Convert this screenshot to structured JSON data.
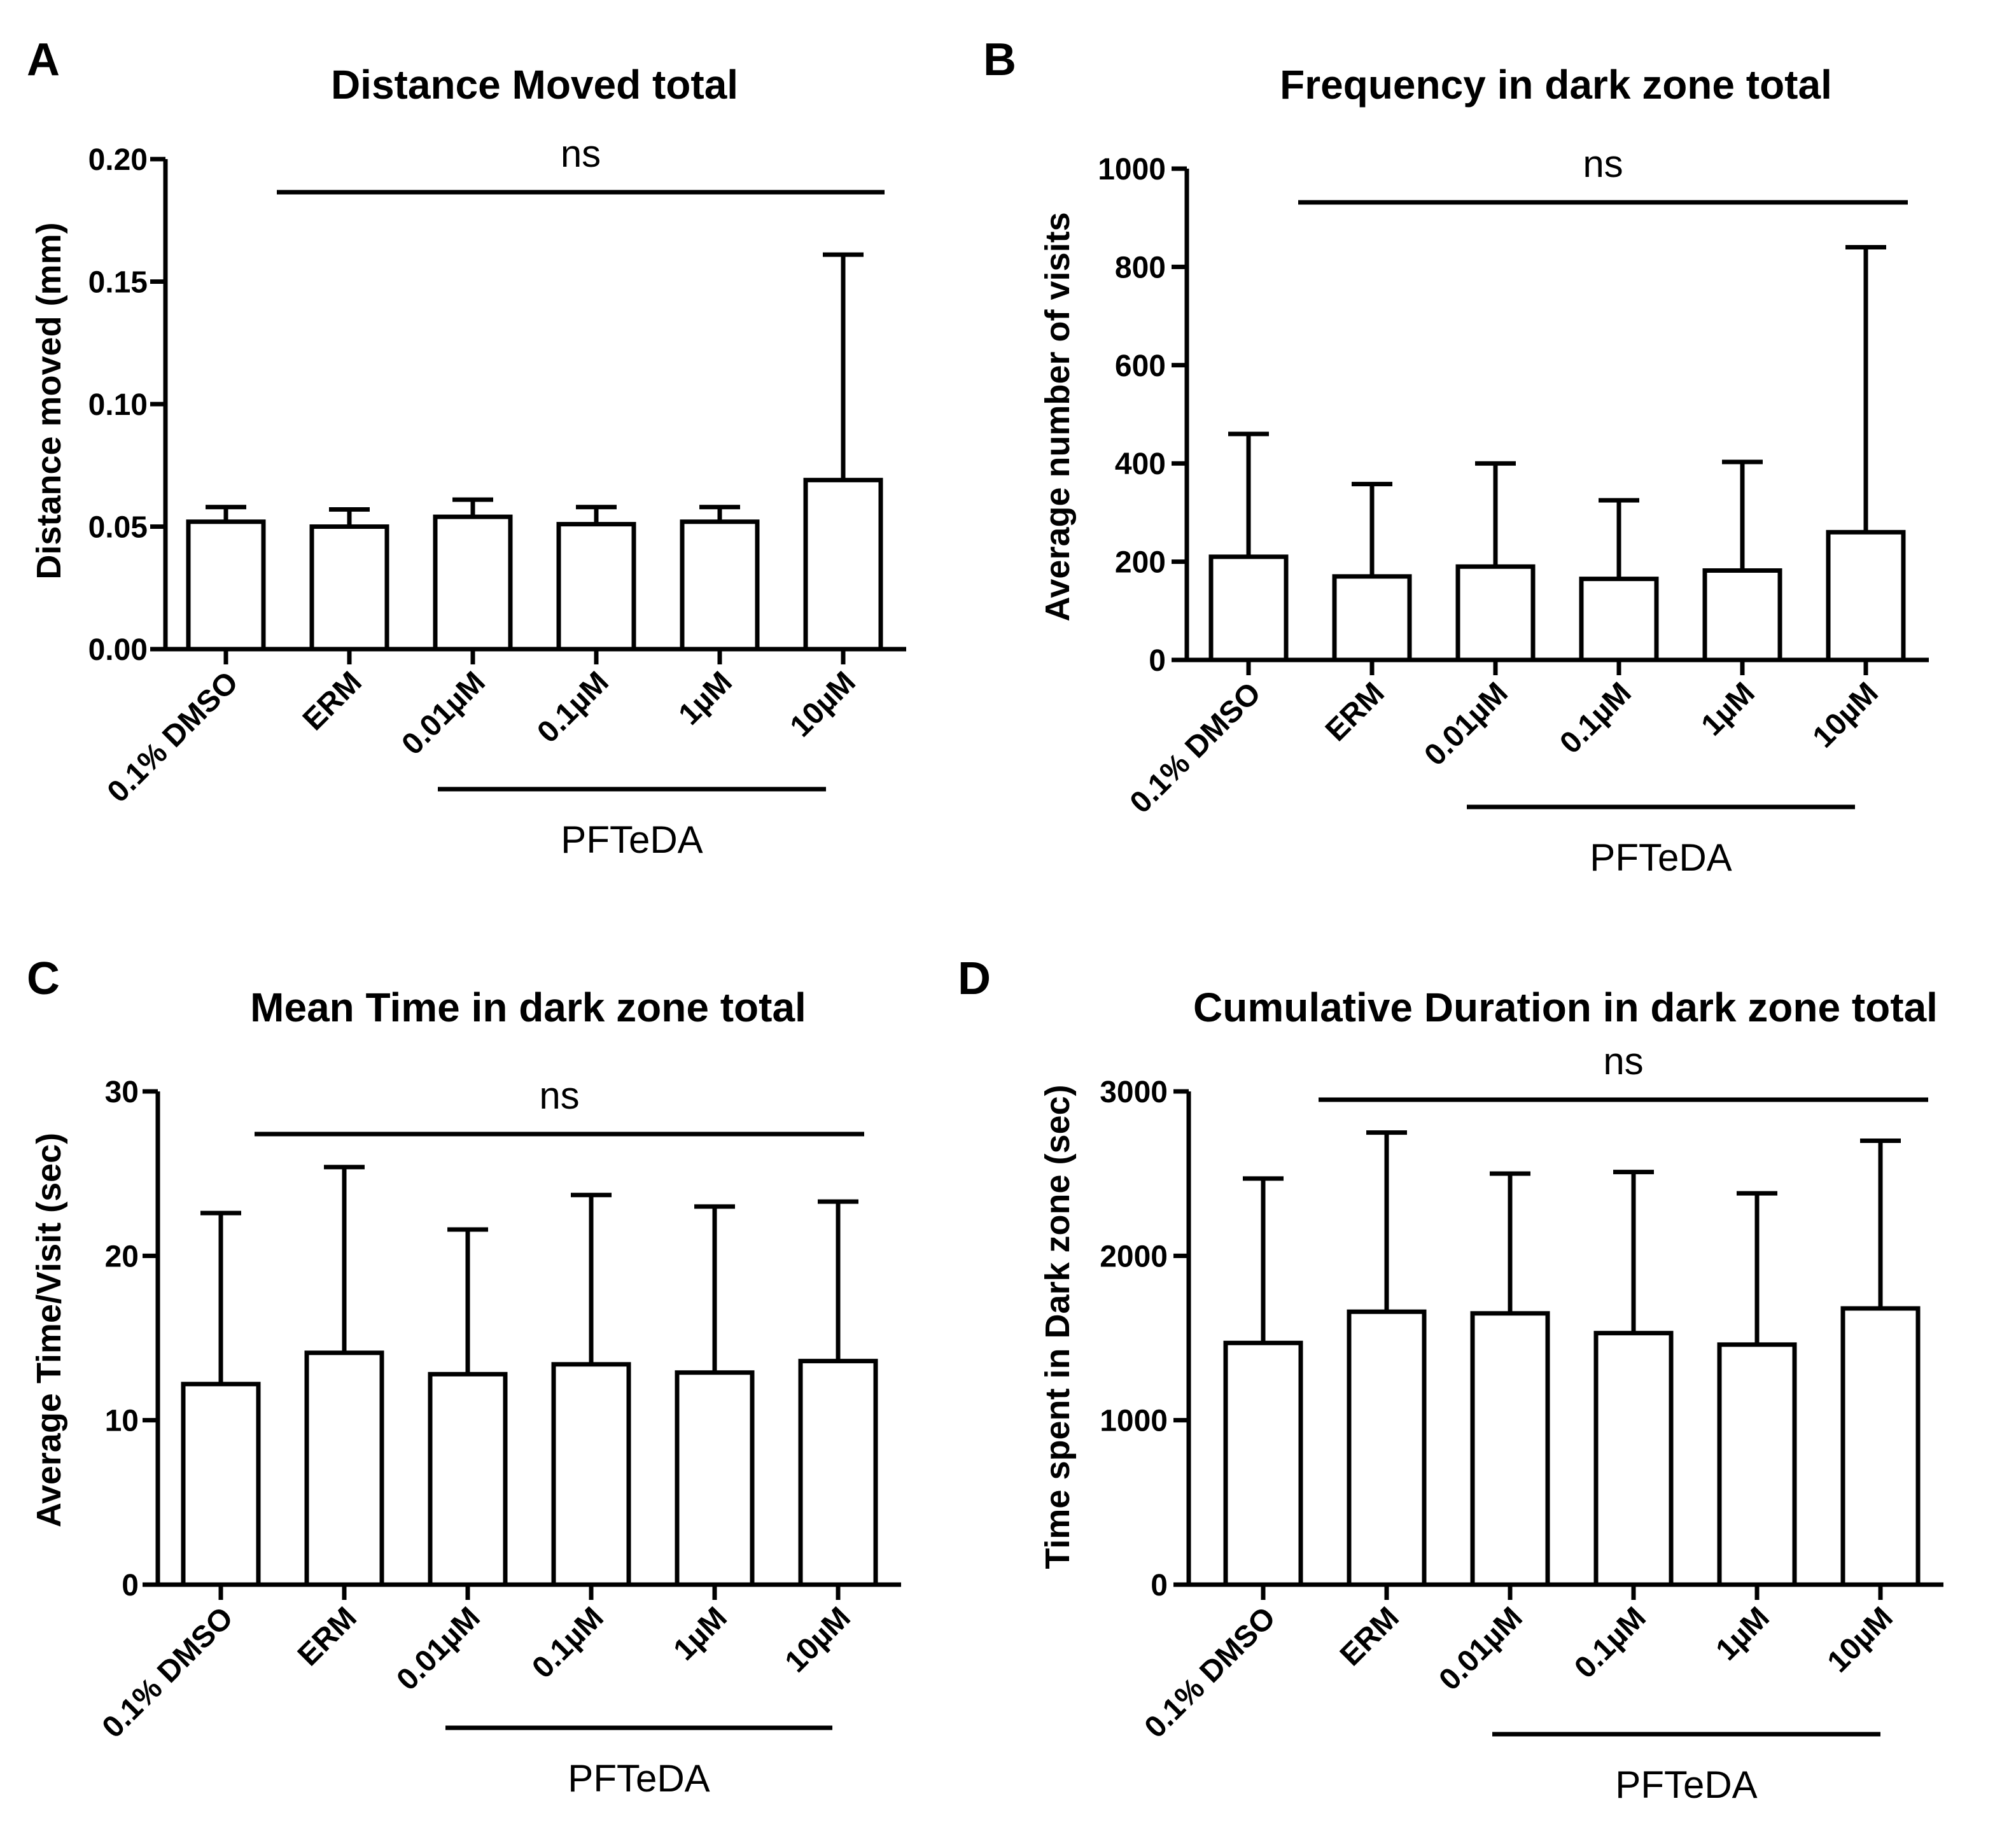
{
  "figure": {
    "panels": [
      "A",
      "B",
      "C",
      "D"
    ],
    "categories": [
      "0.1% DMSO",
      "ERM",
      "0.01µM",
      "0.1µM",
      "1µM",
      "10µM"
    ],
    "group_label": "PFTeDA",
    "significance_label": "ns"
  },
  "chart_data": [
    {
      "panel": "A",
      "type": "bar",
      "title": "Distance Moved total",
      "xlabel": "",
      "ylabel": "Distance moved (mm)",
      "categories": [
        "0.1% DMSO",
        "ERM",
        "0.01µM",
        "0.1µM",
        "1µM",
        "10µM"
      ],
      "values": [
        0.052,
        0.05,
        0.054,
        0.051,
        0.052,
        0.069
      ],
      "error_upper": [
        0.058,
        0.057,
        0.061,
        0.058,
        0.058,
        0.161
      ],
      "ylim": [
        0,
        0.2
      ],
      "yticks": [
        0.0,
        0.05,
        0.1,
        0.15,
        0.2
      ],
      "ytick_labels": [
        "0.00",
        "0.05",
        "0.10",
        "0.15",
        "0.20"
      ],
      "significance": "ns",
      "group_label": "PFTeDA"
    },
    {
      "panel": "B",
      "type": "bar",
      "title": "Frequency in dark zone total",
      "xlabel": "",
      "ylabel": "Average number of visits",
      "categories": [
        "0.1% DMSO",
        "ERM",
        "0.01µM",
        "0.1µM",
        "1µM",
        "10µM"
      ],
      "values": [
        210,
        170,
        190,
        165,
        182,
        260
      ],
      "error_upper": [
        460,
        358,
        400,
        325,
        403,
        840
      ],
      "ylim": [
        0,
        1000
      ],
      "yticks": [
        0,
        200,
        400,
        600,
        800,
        1000
      ],
      "ytick_labels": [
        "0",
        "200",
        "400",
        "600",
        "800",
        "1000"
      ],
      "significance": "ns",
      "group_label": "PFTeDA"
    },
    {
      "panel": "C",
      "type": "bar",
      "title": "Mean Time in dark zone total",
      "xlabel": "",
      "ylabel": "Average Time/Visit (sec)",
      "categories": [
        "0.1% DMSO",
        "ERM",
        "0.01µM",
        "0.1µM",
        "1µM",
        "10µM"
      ],
      "values": [
        12.2,
        14.1,
        12.8,
        13.4,
        12.9,
        13.6
      ],
      "error_upper": [
        22.6,
        25.4,
        21.6,
        23.7,
        23.0,
        23.3
      ],
      "ylim": [
        0,
        30
      ],
      "yticks": [
        0,
        10,
        20,
        30
      ],
      "ytick_labels": [
        "0",
        "10",
        "20",
        "30"
      ],
      "significance": "ns",
      "group_label": "PFTeDA"
    },
    {
      "panel": "D",
      "type": "bar",
      "title": "Cumulative Duration in dark zone total",
      "xlabel": "",
      "ylabel": "Time spent in Dark zone (sec)",
      "categories": [
        "0.1% DMSO",
        "ERM",
        "0.01µM",
        "0.1µM",
        "1µM",
        "10µM"
      ],
      "values": [
        1470,
        1660,
        1650,
        1530,
        1460,
        1680
      ],
      "error_upper": [
        2470,
        2750,
        2500,
        2510,
        2380,
        2700
      ],
      "ylim": [
        0,
        3000
      ],
      "yticks": [
        0,
        1000,
        2000,
        3000
      ],
      "ytick_labels": [
        "0",
        "1000",
        "2000",
        "3000"
      ],
      "significance": "ns",
      "group_label": "PFTeDA"
    }
  ]
}
